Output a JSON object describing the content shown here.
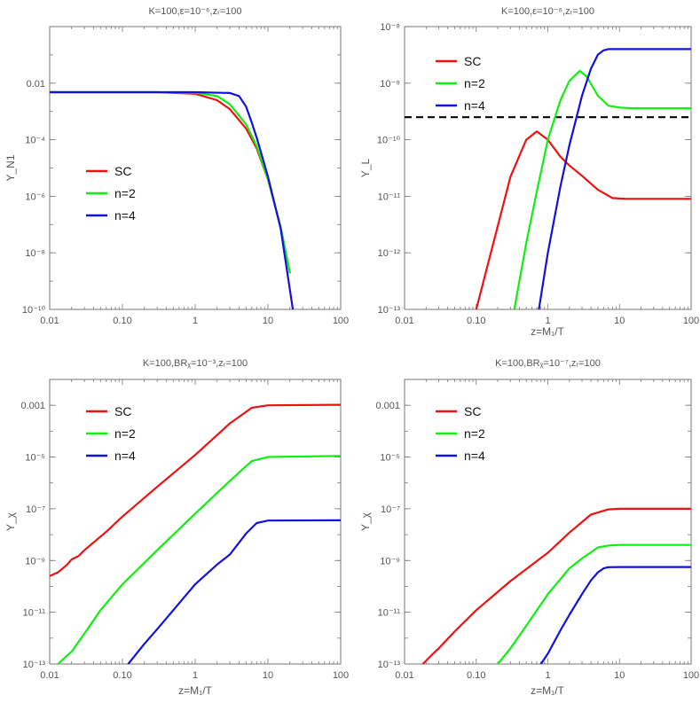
{
  "chart_data": [
    {
      "type": "line",
      "title": "K=100,ε=10⁻⁶,zᵣ=100",
      "xlabel": "",
      "ylabel": "Y_N1",
      "xscale": "log",
      "yscale": "log",
      "xlim": [
        0.01,
        100
      ],
      "ylim": [
        1e-10,
        1
      ],
      "xticks": [
        "0.01",
        "0.10",
        "1",
        "10",
        "100"
      ],
      "yticks": [
        {
          "value": 0.01,
          "label": "0.01"
        },
        {
          "value": 0.0001,
          "label": "10⁻⁴"
        },
        {
          "value": 1e-06,
          "label": "10⁻⁶"
        },
        {
          "value": 1e-08,
          "label": "10⁻⁸"
        },
        {
          "value": 1e-10,
          "label": "10⁻¹⁰"
        }
      ],
      "legend": "center-left",
      "series": [
        {
          "name": "SC",
          "color": "#ee1111",
          "x": [
            0.01,
            0.3,
            1,
            2,
            3,
            5,
            7,
            10,
            15,
            20
          ],
          "y": [
            0.0048,
            0.0048,
            0.0042,
            0.0025,
            0.0012,
            0.00025,
            5e-05,
            4e-06,
            8e-08,
            2e-09
          ]
        },
        {
          "name": "n=2",
          "color": "#11ee11",
          "x": [
            0.01,
            0.3,
            1,
            2,
            3,
            5,
            7,
            10,
            15,
            20
          ],
          "y": [
            0.0048,
            0.0048,
            0.0046,
            0.0035,
            0.0018,
            0.00035,
            6e-05,
            4e-06,
            8e-08,
            2e-09
          ]
        },
        {
          "name": "n=4",
          "color": "#1111dd",
          "x": [
            0.01,
            0.3,
            1,
            3,
            4,
            5,
            6,
            7,
            10,
            15,
            22
          ],
          "y": [
            0.0048,
            0.0048,
            0.0048,
            0.0045,
            0.0035,
            0.0015,
            0.0004,
            0.00012,
            5e-06,
            7e-08,
            1e-10
          ]
        }
      ]
    },
    {
      "type": "line",
      "title": "K=100,ε=10⁻⁶,zᵣ=100",
      "xlabel": "z=M₁/T",
      "ylabel": "Y_L",
      "xscale": "log",
      "yscale": "log",
      "xlim": [
        0.01,
        100
      ],
      "ylim": [
        1e-13,
        1e-08
      ],
      "xticks": [
        "0.01",
        "0.10",
        "1",
        "10",
        "100"
      ],
      "yticks": [
        {
          "value": 1e-08,
          "label": "10⁻⁸"
        },
        {
          "value": 1e-09,
          "label": "10⁻⁹"
        },
        {
          "value": 1e-10,
          "label": "10⁻¹⁰"
        },
        {
          "value": 1e-11,
          "label": "10⁻¹¹"
        },
        {
          "value": 1e-12,
          "label": "10⁻¹²"
        },
        {
          "value": 1e-13,
          "label": "10⁻¹³"
        }
      ],
      "reference_line": {
        "y": 2.5e-10,
        "style": "dashed",
        "color": "#000000"
      },
      "legend": "top-left",
      "series": [
        {
          "name": "SC",
          "color": "#ee1111",
          "x": [
            0.1,
            0.2,
            0.3,
            0.5,
            0.7,
            1,
            1.5,
            2,
            3,
            5,
            8,
            12,
            100
          ],
          "y": [
            1e-13,
            3e-12,
            2.2e-11,
            1e-10,
            1.4e-10,
            1e-10,
            5e-11,
            3.5e-11,
            2.3e-11,
            1.3e-11,
            9.3e-12,
            9e-12,
            9e-12
          ]
        },
        {
          "name": "n=2",
          "color": "#11ee11",
          "x": [
            0.34,
            0.5,
            0.7,
            1,
            1.5,
            2,
            2.8,
            3.5,
            5,
            7,
            10,
            15,
            100
          ],
          "y": [
            1e-13,
            1.5e-12,
            1.2e-11,
            1e-10,
            5e-10,
            1.1e-09,
            1.65e-09,
            1.3e-09,
            6e-10,
            4e-10,
            3.7e-10,
            3.6e-10,
            3.6e-10
          ]
        },
        {
          "name": "n=4",
          "color": "#1111dd",
          "x": [
            0.75,
            1,
            1.5,
            2,
            3,
            4,
            5,
            6,
            7,
            10,
            100
          ],
          "y": [
            1e-13,
            1e-12,
            1.5e-11,
            8e-11,
            6e-10,
            1.8e-09,
            3.2e-09,
            3.8e-09,
            4e-09,
            4e-09,
            4e-09
          ]
        }
      ]
    },
    {
      "type": "line",
      "title": "K=100,BRᵪ=10⁻³,zᵣ=100",
      "xlabel": "z=M₁/T",
      "ylabel": "Y_χ",
      "xscale": "log",
      "yscale": "log",
      "xlim": [
        0.01,
        100
      ],
      "ylim": [
        1e-13,
        0.01
      ],
      "xticks": [
        "0.01",
        "0.10",
        "1",
        "10",
        "100"
      ],
      "yticks": [
        {
          "value": 0.001,
          "label": "0.001"
        },
        {
          "value": 1e-05,
          "label": "10⁻⁵"
        },
        {
          "value": 1e-07,
          "label": "10⁻⁷"
        },
        {
          "value": 1e-09,
          "label": "10⁻⁹"
        },
        {
          "value": 1e-11,
          "label": "10⁻¹¹"
        },
        {
          "value": 1e-13,
          "label": "10⁻¹³"
        }
      ],
      "legend": "top-left",
      "series": [
        {
          "name": "SC",
          "color": "#ee1111",
          "x": [
            0.01,
            0.013,
            0.017,
            0.02,
            0.025,
            0.03,
            0.04,
            0.06,
            0.1,
            0.3,
            1,
            3,
            6,
            10,
            100
          ],
          "y": [
            2.5e-10,
            3.5e-10,
            6.5e-10,
            1.1e-09,
            1.5e-09,
            2.5e-09,
            5e-09,
            1.3e-08,
            5e-08,
            7e-07,
            1.2e-05,
            0.0002,
            0.0008,
            0.001,
            0.00105
          ]
        },
        {
          "name": "n=2",
          "color": "#11ee11",
          "x": [
            0.013,
            0.017,
            0.02,
            0.03,
            0.05,
            0.1,
            0.3,
            1,
            3,
            6,
            10,
            100
          ],
          "y": [
            1e-13,
            2e-13,
            3e-13,
            1.5e-12,
            1.2e-11,
            1.2e-10,
            2.5e-09,
            6.5e-08,
            1.2e-06,
            7e-06,
            1e-05,
            1.1e-05
          ]
        },
        {
          "name": "n=4",
          "color": "#1111dd",
          "x": [
            0.12,
            0.2,
            0.3,
            0.5,
            1,
            2,
            3,
            5,
            7,
            10,
            100
          ],
          "y": [
            1e-13,
            6e-13,
            2.2e-12,
            1.2e-11,
            1.2e-10,
            7e-10,
            1.7e-09,
            1.1e-08,
            2.8e-08,
            3.5e-08,
            3.6e-08
          ]
        }
      ]
    },
    {
      "type": "line",
      "title": "K=100,BRᵪ=10⁻⁷,zᵣ=100",
      "xlabel": "z=M₁/T",
      "ylabel": "Y_χ",
      "xscale": "log",
      "yscale": "log",
      "xlim": [
        0.01,
        100
      ],
      "ylim": [
        1e-13,
        0.01
      ],
      "xticks": [
        "0.01",
        "0.10",
        "1",
        "10",
        "100"
      ],
      "yticks": [
        {
          "value": 0.001,
          "label": "0.001"
        },
        {
          "value": 1e-05,
          "label": "10⁻⁵"
        },
        {
          "value": 1e-07,
          "label": "10⁻⁷"
        },
        {
          "value": 1e-09,
          "label": "10⁻⁹"
        },
        {
          "value": 1e-11,
          "label": "10⁻¹¹"
        },
        {
          "value": 1e-13,
          "label": "10⁻¹³"
        }
      ],
      "legend": "top-left",
      "series": [
        {
          "name": "SC",
          "color": "#ee1111",
          "x": [
            0.018,
            0.025,
            0.03,
            0.05,
            0.1,
            0.3,
            1,
            2,
            4,
            7,
            10,
            100
          ],
          "y": [
            1e-13,
            2.5e-13,
            4e-13,
            1.8e-12,
            1.2e-11,
            1.6e-10,
            2e-09,
            1.2e-08,
            6e-08,
            9.5e-08,
            1e-07,
            1e-07
          ]
        },
        {
          "name": "n=2",
          "color": "#11ee11",
          "x": [
            0.2,
            0.3,
            0.5,
            1,
            2,
            3,
            5,
            7,
            10,
            100
          ],
          "y": [
            1e-13,
            4e-13,
            3e-12,
            5e-11,
            5e-10,
            1.2e-09,
            3.2e-09,
            3.8e-09,
            4e-09,
            4e-09
          ]
        },
        {
          "name": "n=4",
          "color": "#1111dd",
          "x": [
            0.8,
            1,
            1.5,
            2,
            3,
            4,
            5,
            6,
            7,
            10,
            100
          ],
          "y": [
            1e-13,
            2.5e-13,
            2e-12,
            8e-12,
            5e-11,
            1.7e-10,
            3.5e-10,
            5e-10,
            5.5e-10,
            5.6e-10,
            5.6e-10
          ]
        }
      ]
    }
  ]
}
